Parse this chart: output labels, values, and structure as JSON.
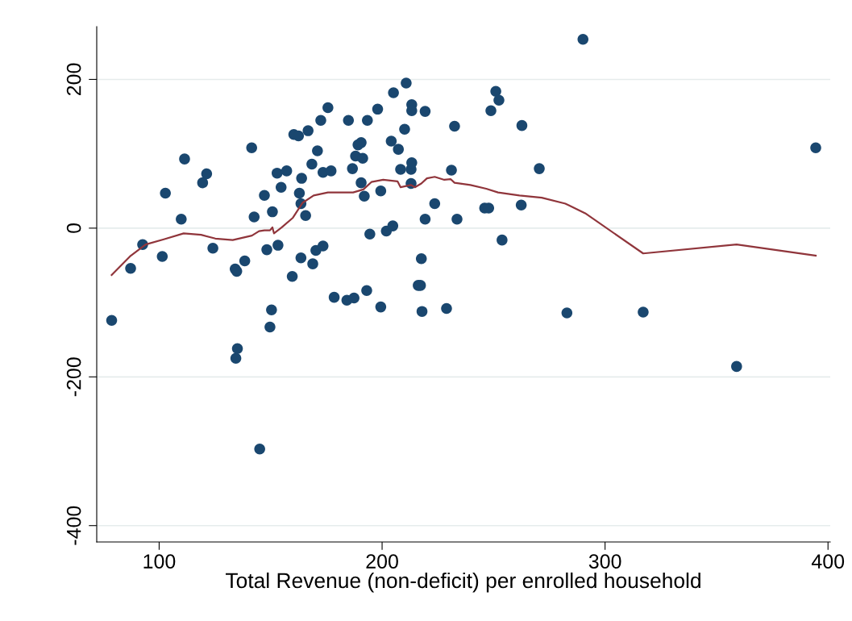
{
  "chart_data": {
    "type": "scatter",
    "xlabel": "Total Revenue (non-deficit) per enrolled household",
    "xlim": [
      72,
      401
    ],
    "xticks": [
      100,
      200,
      300,
      400
    ],
    "ylim": [
      -422,
      271
    ],
    "yticks": [
      -400,
      -200,
      0,
      200
    ],
    "grid": "y",
    "legend": false,
    "series": [
      {
        "color": "#1a476f",
        "marker": "circle",
        "x": [
          78.7,
          87.2,
          92.6,
          101.4,
          102.8,
          109.9,
          111.4,
          119.5,
          121.3,
          124.1,
          134.1,
          134.8,
          134.4,
          135.1,
          138.4,
          141.5,
          142.6,
          145.1,
          147.2,
          148.3,
          149.7,
          150.4,
          150.8,
          152.9,
          153.3,
          154.7,
          157.2,
          159.7,
          160.4,
          162.5,
          162.9,
          163.6,
          163.6,
          163.9,
          165.7,
          166.8,
          168.5,
          168.9,
          170.3,
          171.0,
          172.5,
          173.5,
          173.5,
          175.7,
          177.1,
          178.5,
          184.2,
          184.9,
          186.7,
          187.4,
          188.1,
          189.2,
          190.6,
          190.6,
          191.3,
          192.0,
          193.1,
          193.4,
          194.5,
          198.0,
          199.4,
          199.4,
          201.9,
          204.1,
          204.8,
          205.1,
          207.3,
          208.3,
          210.1,
          210.8,
          213.0,
          213.3,
          213.3,
          213.3,
          213.0,
          216.2,
          217.2,
          217.6,
          217.9,
          219.3,
          219.3,
          223.6,
          228.9,
          231.1,
          232.5,
          233.6,
          246.0,
          247.8,
          248.8,
          251.0,
          252.4,
          253.8,
          262.4,
          262.7,
          270.5,
          282.9,
          290.1,
          317.1,
          359.0,
          394.5
        ],
        "values": [
          -124,
          -54,
          -22,
          -38,
          47,
          12,
          93,
          61,
          73,
          -27,
          -55,
          -58,
          -175,
          -162,
          -44,
          108,
          15,
          -297,
          44,
          -29,
          -133,
          -110,
          22,
          74,
          -23,
          55,
          77,
          -65,
          126,
          124,
          47,
          -40,
          33,
          67,
          17,
          131,
          86,
          -48,
          -30,
          104,
          145,
          -24,
          75,
          162,
          77,
          -93,
          -97,
          145,
          80,
          -94,
          97,
          112,
          61,
          115,
          94,
          43,
          -84,
          145,
          -8,
          160,
          50,
          -106,
          -4,
          117,
          3,
          182,
          106,
          79,
          133,
          195,
          79,
          166,
          158,
          88,
          60,
          -77,
          -77,
          -41,
          -112,
          157,
          12,
          33,
          -108,
          78,
          137,
          12,
          27,
          27,
          158,
          184,
          172,
          -16,
          31,
          138,
          80,
          -114,
          254,
          -113,
          -186,
          108
        ]
      },
      {
        "type": "line",
        "color": "#90353b",
        "marker": "none",
        "line_style": "solid",
        "x": [
          78.7,
          86.9,
          93.96,
          102.1,
          111.0,
          118.8,
          125.2,
          133.0,
          141.6,
          144.8,
          147.2,
          149.7,
          150.8,
          151.5,
          155.0,
          160.0,
          164.3,
          169.3,
          175.7,
          182.8,
          187.0,
          191.6,
          195.2,
          200.5,
          206.9,
          208.3,
          213.0,
          214.7,
          217.6,
          220.1,
          223.6,
          227.9,
          230.7,
          232.5,
          239.6,
          246.7,
          252.0,
          261.6,
          271.6,
          282.2,
          291.1,
          317.1,
          359.0,
          394.5
        ],
        "values": [
          -63,
          -38,
          -22,
          -15,
          -7,
          -9,
          -14,
          -16,
          -10,
          -4,
          -3,
          -3,
          1,
          -7,
          1,
          14,
          34,
          44,
          48,
          48,
          48,
          52,
          62,
          65,
          63,
          55,
          58,
          55,
          60,
          67,
          69,
          65,
          66,
          61,
          58,
          53,
          48,
          44,
          41,
          33,
          20,
          -34,
          -22,
          -37
        ]
      }
    ]
  }
}
